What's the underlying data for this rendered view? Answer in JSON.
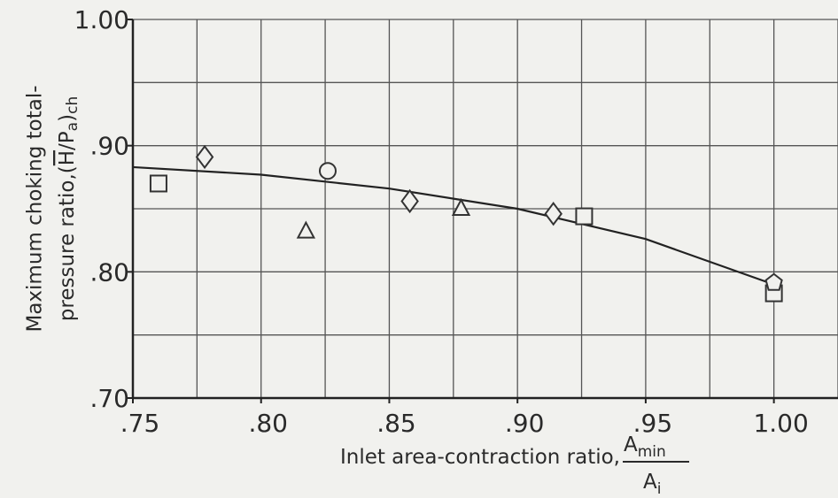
{
  "chart_data": {
    "type": "scatter",
    "ylabel": [
      "Maximum choking total-",
      "pressure ratio,(",
      "H",
      "/P",
      "a",
      ")",
      "ch"
    ],
    "xlabel": [
      "Inlet area-contraction ratio,",
      "A",
      "min",
      "A",
      "i"
    ],
    "xlim": [
      0.75,
      1.025
    ],
    "ylim": [
      0.7,
      1.0
    ],
    "xticks": [
      {
        "value": 0.75,
        "label": ".75"
      },
      {
        "value": 0.8,
        "label": ".80"
      },
      {
        "value": 0.85,
        "label": ".85"
      },
      {
        "value": 0.9,
        "label": ".90"
      },
      {
        "value": 0.95,
        "label": ".95"
      },
      {
        "value": 1.0,
        "label": "1.00"
      }
    ],
    "yticks": [
      {
        "value": 0.7,
        "label": ".70"
      },
      {
        "value": 0.8,
        "label": ".80"
      },
      {
        "value": 0.9,
        "label": ".90"
      },
      {
        "value": 1.0,
        "label": "1.00"
      }
    ],
    "xgrid": [
      0.75,
      0.775,
      0.8,
      0.825,
      0.85,
      0.875,
      0.9,
      0.925,
      0.95,
      0.975,
      1.0,
      1.025
    ],
    "ygrid": [
      0.7,
      0.75,
      0.8,
      0.85,
      0.9,
      0.95,
      1.0
    ],
    "grid": true,
    "series": [
      {
        "marker": "square",
        "color": "#333333",
        "x": [
          0.76,
          0.926,
          1.0
        ],
        "y": [
          0.87,
          0.844,
          0.783
        ]
      },
      {
        "marker": "diamond",
        "color": "#333333",
        "x": [
          0.778,
          0.858,
          0.914
        ],
        "y": [
          0.891,
          0.856,
          0.846
        ]
      },
      {
        "marker": "triangle",
        "color": "#333333",
        "x": [
          0.8175,
          0.878
        ],
        "y": [
          0.832,
          0.85
        ]
      },
      {
        "marker": "circle",
        "color": "#333333",
        "x": [
          0.826
        ],
        "y": [
          0.88
        ]
      },
      {
        "marker": "pentagon",
        "color": "#333333",
        "x": [
          1.0
        ],
        "y": [
          0.792
        ]
      }
    ],
    "fit": {
      "color": "#222222",
      "x": [
        0.75,
        0.8,
        0.85,
        0.9,
        0.95,
        1.0
      ],
      "y": [
        0.883,
        0.877,
        0.866,
        0.85,
        0.826,
        0.79
      ]
    }
  }
}
